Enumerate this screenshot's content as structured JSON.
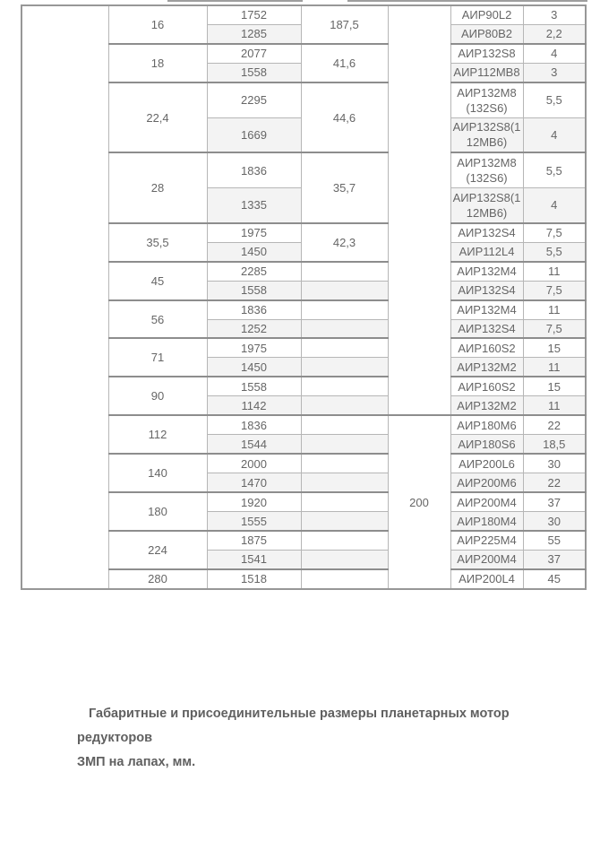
{
  "colors": {
    "zebra_row": "#f3f3f3",
    "border_light": "#b6b6b6",
    "border_group": "#8d8d8d",
    "text_gray": "#666666"
  },
  "caption": {
    "line1": "Габаритные и присоединительные размеры планетарных мотор редукторов",
    "line2": "ЗМП на лапах, мм."
  },
  "table": {
    "rows": [
      {
        "gs": false,
        "cells": [
          {
            "cls": "c1",
            "rs": 27,
            "t": ""
          },
          {
            "cls": "ratio",
            "rs": 2,
            "t": "16"
          },
          {
            "cls": "num",
            "t": "1752"
          },
          {
            "cls": "val",
            "rs": 2,
            "t": "187,5"
          },
          {
            "cls": "size",
            "rs": 18,
            "t": ""
          },
          {
            "cls": "motor",
            "t": "АИР90L2"
          },
          {
            "cls": "pow",
            "t": "3"
          }
        ]
      },
      {
        "cells": [
          {
            "cls": "num sh",
            "t": "1285"
          },
          {
            "cls": "motor sh",
            "t": "АИР80В2"
          },
          {
            "cls": "pow sh",
            "t": "2,2"
          }
        ]
      },
      {
        "gs": true,
        "cells": [
          {
            "cls": "ratio",
            "rs": 2,
            "t": "18"
          },
          {
            "cls": "num",
            "t": "2077"
          },
          {
            "cls": "val",
            "rs": 2,
            "t": "41,6"
          },
          {
            "cls": "motor",
            "t": "АИР132S8"
          },
          {
            "cls": "pow",
            "t": "4"
          }
        ]
      },
      {
        "cells": [
          {
            "cls": "num sh",
            "t": "1558"
          },
          {
            "cls": "motor sh",
            "t": "АИР112МВ8"
          },
          {
            "cls": "pow sh",
            "t": "3"
          }
        ]
      },
      {
        "gs": true,
        "tall": true,
        "cells": [
          {
            "cls": "ratio",
            "rs": 2,
            "t": "22,4"
          },
          {
            "cls": "num",
            "t": "2295"
          },
          {
            "cls": "val",
            "rs": 2,
            "t": "44,6"
          },
          {
            "cls": "motor",
            "t": "АИР132М8(132S6)"
          },
          {
            "cls": "pow",
            "t": "5,5"
          }
        ]
      },
      {
        "tall": true,
        "cells": [
          {
            "cls": "num sh",
            "t": "1669"
          },
          {
            "cls": "motor sh",
            "t": "АИР132S8(112МВ6)"
          },
          {
            "cls": "pow sh",
            "t": "4"
          }
        ]
      },
      {
        "gs": true,
        "tall": true,
        "cells": [
          {
            "cls": "ratio",
            "rs": 2,
            "t": "28"
          },
          {
            "cls": "num",
            "t": "1836"
          },
          {
            "cls": "val",
            "rs": 2,
            "t": "35,7"
          },
          {
            "cls": "motor",
            "t": "АИР132М8(132S6)"
          },
          {
            "cls": "pow",
            "t": "5,5"
          }
        ]
      },
      {
        "tall": true,
        "cells": [
          {
            "cls": "num sh",
            "t": "1335"
          },
          {
            "cls": "motor sh",
            "t": "АИР132S8(112МВ6)"
          },
          {
            "cls": "pow sh",
            "t": "4"
          }
        ]
      },
      {
        "gs": true,
        "cells": [
          {
            "cls": "ratio",
            "rs": 2,
            "t": "35,5"
          },
          {
            "cls": "num",
            "t": "1975"
          },
          {
            "cls": "val",
            "rs": 2,
            "t": "42,3"
          },
          {
            "cls": "motor",
            "t": "АИР132S4"
          },
          {
            "cls": "pow",
            "t": "7,5"
          }
        ]
      },
      {
        "cells": [
          {
            "cls": "num sh",
            "t": "1450"
          },
          {
            "cls": "motor sh",
            "t": "АИР112L4"
          },
          {
            "cls": "pow sh",
            "t": "5,5"
          }
        ]
      },
      {
        "gs": true,
        "cells": [
          {
            "cls": "ratio",
            "rs": 2,
            "t": "45"
          },
          {
            "cls": "num",
            "t": "2285"
          },
          {
            "cls": "val",
            "t": ""
          },
          {
            "cls": "motor",
            "t": "АИР132М4"
          },
          {
            "cls": "pow",
            "t": "11"
          }
        ]
      },
      {
        "cells": [
          {
            "cls": "num sh",
            "t": "1558"
          },
          {
            "cls": "val sh",
            "t": ""
          },
          {
            "cls": "motor sh",
            "t": "АИР132S4"
          },
          {
            "cls": "pow sh",
            "t": "7,5"
          }
        ]
      },
      {
        "gs": true,
        "cells": [
          {
            "cls": "ratio",
            "rs": 2,
            "t": "56"
          },
          {
            "cls": "num",
            "t": "1836"
          },
          {
            "cls": "val",
            "t": ""
          },
          {
            "cls": "motor",
            "t": "АИР132М4"
          },
          {
            "cls": "pow",
            "t": "11"
          }
        ]
      },
      {
        "cells": [
          {
            "cls": "num sh",
            "t": "1252"
          },
          {
            "cls": "val sh",
            "t": ""
          },
          {
            "cls": "motor sh",
            "t": "АИР132S4"
          },
          {
            "cls": "pow sh",
            "t": "7,5"
          }
        ]
      },
      {
        "gs": true,
        "cells": [
          {
            "cls": "ratio",
            "rs": 2,
            "t": "71"
          },
          {
            "cls": "num",
            "t": "1975"
          },
          {
            "cls": "val",
            "t": ""
          },
          {
            "cls": "motor",
            "t": "АИР160S2"
          },
          {
            "cls": "pow",
            "t": "15"
          }
        ]
      },
      {
        "cells": [
          {
            "cls": "num sh",
            "t": "1450"
          },
          {
            "cls": "val sh",
            "t": ""
          },
          {
            "cls": "motor sh",
            "t": "АИР132М2"
          },
          {
            "cls": "pow sh",
            "t": "11"
          }
        ]
      },
      {
        "gs": true,
        "cells": [
          {
            "cls": "ratio",
            "rs": 2,
            "t": "90"
          },
          {
            "cls": "num",
            "t": "1558"
          },
          {
            "cls": "val",
            "t": ""
          },
          {
            "cls": "motor",
            "t": "АИР160S2"
          },
          {
            "cls": "pow",
            "t": "15"
          }
        ]
      },
      {
        "cells": [
          {
            "cls": "num sh",
            "t": "1142"
          },
          {
            "cls": "val sh",
            "t": ""
          },
          {
            "cls": "motor sh",
            "t": "АИР132М2"
          },
          {
            "cls": "pow sh",
            "t": "11"
          }
        ]
      },
      {
        "gs": true,
        "cells": [
          {
            "cls": "ratio",
            "rs": 2,
            "t": "112"
          },
          {
            "cls": "num",
            "t": "1836"
          },
          {
            "cls": "val",
            "t": ""
          },
          {
            "cls": "size",
            "rs": 9,
            "t": "200"
          },
          {
            "cls": "motor",
            "t": "АИР180М6"
          },
          {
            "cls": "pow",
            "t": "22"
          }
        ]
      },
      {
        "cells": [
          {
            "cls": "num sh",
            "t": "1544"
          },
          {
            "cls": "val sh",
            "t": ""
          },
          {
            "cls": "motor sh",
            "t": "АИР180S6"
          },
          {
            "cls": "pow sh",
            "t": "18,5"
          }
        ]
      },
      {
        "gs": true,
        "cells": [
          {
            "cls": "ratio",
            "rs": 2,
            "t": "140"
          },
          {
            "cls": "num",
            "t": "2000"
          },
          {
            "cls": "val",
            "t": ""
          },
          {
            "cls": "motor",
            "t": "АИР200L6"
          },
          {
            "cls": "pow",
            "t": "30"
          }
        ]
      },
      {
        "cells": [
          {
            "cls": "num sh",
            "t": "1470"
          },
          {
            "cls": "val sh",
            "t": ""
          },
          {
            "cls": "motor sh",
            "t": "АИР200М6"
          },
          {
            "cls": "pow sh",
            "t": "22"
          }
        ]
      },
      {
        "gs": true,
        "cells": [
          {
            "cls": "ratio",
            "rs": 2,
            "t": "180"
          },
          {
            "cls": "num",
            "t": "1920"
          },
          {
            "cls": "val",
            "t": ""
          },
          {
            "cls": "motor",
            "t": "АИР200М4"
          },
          {
            "cls": "pow",
            "t": "37"
          }
        ]
      },
      {
        "cells": [
          {
            "cls": "num sh",
            "t": "1555"
          },
          {
            "cls": "val sh",
            "t": ""
          },
          {
            "cls": "motor sh",
            "t": "АИР180М4"
          },
          {
            "cls": "pow sh",
            "t": "30"
          }
        ]
      },
      {
        "gs": true,
        "cells": [
          {
            "cls": "ratio",
            "rs": 2,
            "t": "224"
          },
          {
            "cls": "num",
            "t": "1875"
          },
          {
            "cls": "val",
            "t": ""
          },
          {
            "cls": "motor",
            "t": "АИР225М4"
          },
          {
            "cls": "pow",
            "t": "55"
          }
        ]
      },
      {
        "cells": [
          {
            "cls": "num sh",
            "t": "1541"
          },
          {
            "cls": "val sh",
            "t": ""
          },
          {
            "cls": "motor sh",
            "t": "АИР200М4"
          },
          {
            "cls": "pow sh",
            "t": "37"
          }
        ]
      },
      {
        "gs": true,
        "last": true,
        "cells": [
          {
            "cls": "ratio",
            "t": "280"
          },
          {
            "cls": "num",
            "t": "1518"
          },
          {
            "cls": "val",
            "t": ""
          },
          {
            "cls": "motor",
            "t": "АИР200L4"
          },
          {
            "cls": "pow",
            "t": "45"
          }
        ]
      }
    ]
  }
}
